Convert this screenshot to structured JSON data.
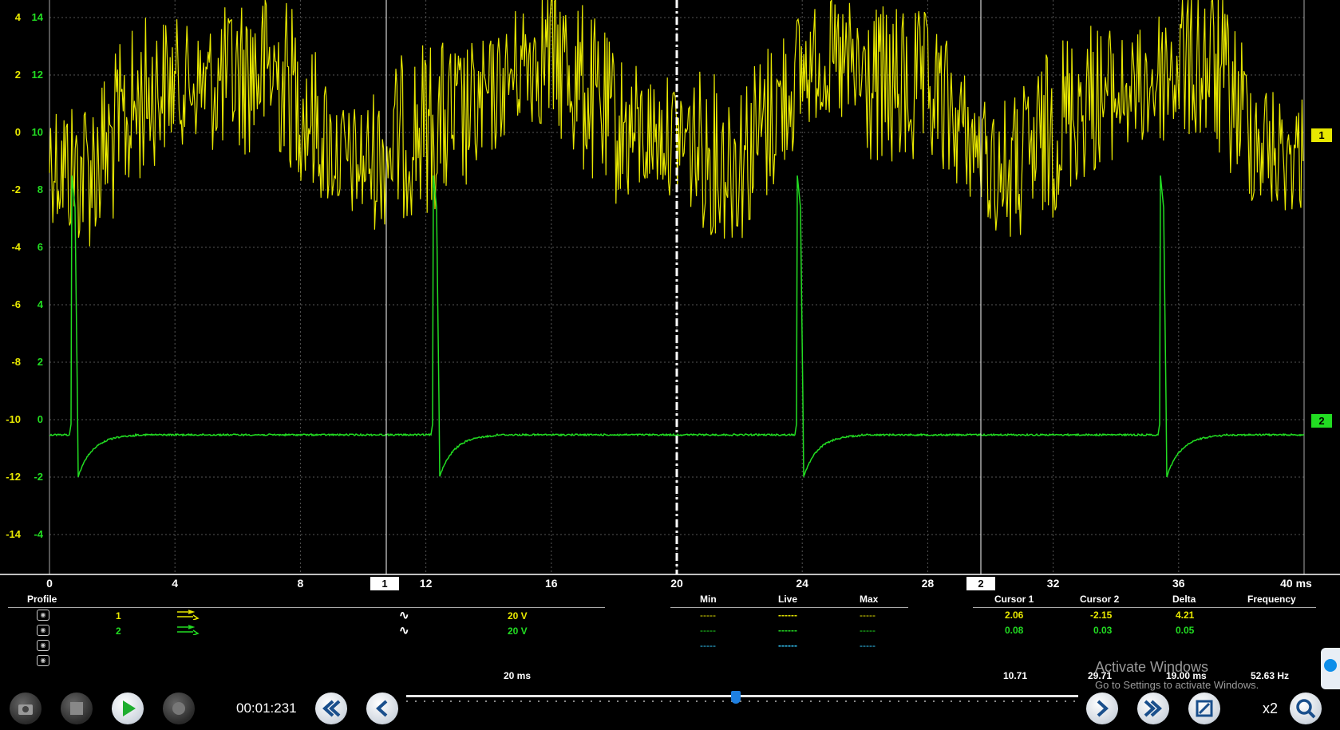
{
  "scope": {
    "ch1_axis": [
      "4",
      "2",
      "0",
      "-2",
      "-4",
      "-6",
      "-8",
      "-10",
      "-12",
      "-14"
    ],
    "ch2_axis": [
      "14",
      "12",
      "10",
      "8",
      "6",
      "4",
      "2",
      "0",
      "-2",
      "-4"
    ],
    "x_ticks": [
      "0",
      "4",
      "8",
      "12",
      "16",
      "20",
      "24",
      "28",
      "32",
      "36",
      "40 ms"
    ],
    "cursor1_label": "1",
    "cursor2_label": "2",
    "ch1_marker": "1",
    "ch2_marker": "2",
    "colors": {
      "ch1": "#e8e800",
      "ch2": "#22dd22",
      "grid": "#555555"
    }
  },
  "channels_table": {
    "profile_header": "Profile",
    "rows": [
      {
        "num": "1",
        "coupling_icon": "ac-wave-icon",
        "range": "20 V"
      },
      {
        "num": "2",
        "coupling_icon": "ac-wave-icon",
        "range": "20 V"
      }
    ]
  },
  "measure": {
    "headers": {
      "min": "Min",
      "live": "Live",
      "max": "Max"
    },
    "rows": [
      {
        "min": "-----",
        "live": "------",
        "max": "-----"
      },
      {
        "min": "-----",
        "live": "------",
        "max": "-----"
      },
      {
        "min": "-----",
        "live": "------",
        "max": "-----"
      }
    ]
  },
  "cursors": {
    "headers": {
      "c1": "Cursor 1",
      "c2": "Cursor 2",
      "delta": "Delta",
      "freq": "Frequency"
    },
    "rows": [
      {
        "c1": "2.06",
        "c2": "-2.15",
        "delta": "4.21"
      },
      {
        "c1": "0.08",
        "c2": "0.03",
        "delta": "0.05"
      }
    ],
    "time": {
      "c1": "10.71",
      "c2": "29.71",
      "delta": "19.00 ms",
      "freq": "52.63 Hz"
    }
  },
  "bottom": {
    "timebase": "20 ms",
    "timer": "00:01:231",
    "zoom": "x2",
    "slider_position": 0.49
  },
  "watermark": {
    "line1": "Activate Windows",
    "line2": "Go to Settings to activate Windows."
  }
}
